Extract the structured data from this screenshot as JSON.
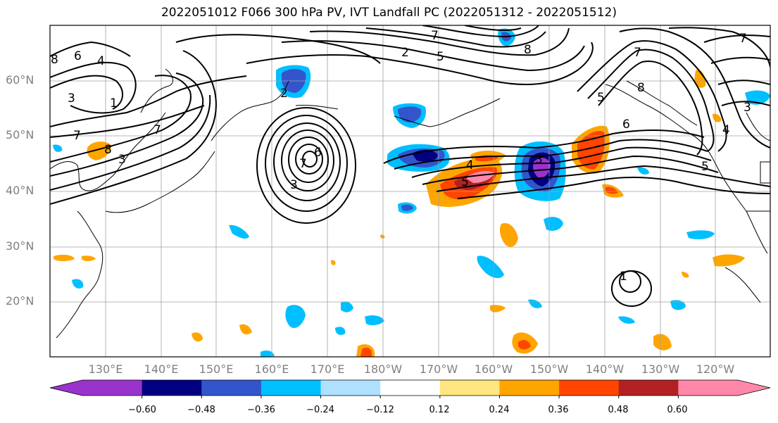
{
  "title": "2022051012 F066 300 hPa PV, IVT Landfall PC (2022051312 - 2022051512)",
  "lat_labels": [
    "60°N",
    "50°N",
    "40°N",
    "30°N",
    "20°N"
  ],
  "lon_labels": [
    "130°E",
    "140°E",
    "150°E",
    "160°E",
    "170°E",
    "180°W",
    "170°W",
    "160°W",
    "150°W",
    "140°W",
    "130°W",
    "120°W"
  ],
  "colorbar": {
    "colors": [
      "#9933cc",
      "#000080",
      "#3355cc",
      "#00bfff",
      "#b0e0ff",
      "#ffffff",
      "#ffe680",
      "#ffa500",
      "#ff4500",
      "#b22222",
      "#ff88aa"
    ],
    "tick_labels": [
      "−0.60",
      "−0.48",
      "−0.36",
      "−0.24",
      "−0.12",
      "0.12",
      "0.24",
      "0.36",
      "0.48",
      "0.60"
    ]
  },
  "contour_labels": {
    "northwest": [
      "8",
      "6",
      "4",
      "3",
      "7",
      "1"
    ],
    "asia": [
      "7",
      "8",
      "3"
    ],
    "low_center": [
      "6",
      "7",
      "3",
      "2"
    ],
    "jet": [
      "4",
      "5",
      "3"
    ],
    "north_pacific": [
      "7",
      "5",
      "2",
      "8"
    ],
    "northeast": [
      "7",
      "8",
      "6",
      "5",
      "4",
      "7",
      "3",
      "5"
    ],
    "subtropical": [
      "1"
    ]
  }
}
